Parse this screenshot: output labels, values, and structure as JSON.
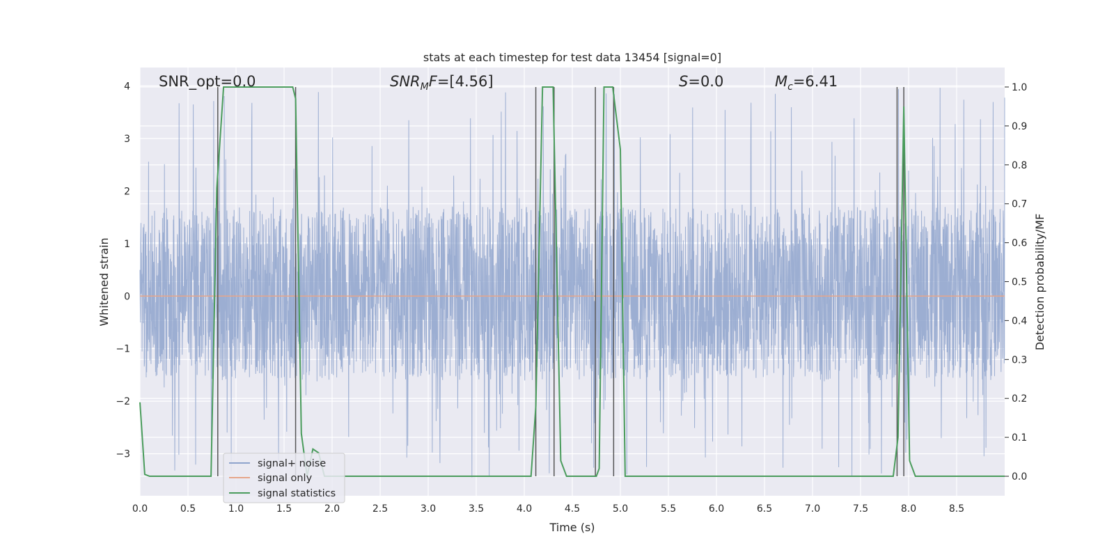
{
  "chart_data": {
    "type": "line",
    "title": "stats at each timestep for test data 13454 [signal=0]",
    "xlabel": "Time (s)",
    "ylabel": "Whitened strain",
    "y2label": "Detection probability/MF",
    "xlim": [
      0,
      9
    ],
    "ylim": [
      -3.8,
      4.35
    ],
    "y2lim": [
      -0.05,
      1.05
    ],
    "x_ticks": [
      "0.0",
      "0.5",
      "1.0",
      "1.5",
      "2.0",
      "2.5",
      "3.0",
      "3.5",
      "4.0",
      "4.5",
      "5.0",
      "5.5",
      "6.0",
      "6.5",
      "7.0",
      "7.5",
      "8.0",
      "8.5"
    ],
    "y_ticks": [
      "4",
      "3",
      "2",
      "1",
      "0",
      "−1",
      "−2",
      "−3"
    ],
    "y2_ticks": [
      "1.0",
      "0.9",
      "0.8",
      "0.7",
      "0.6",
      "0.5",
      "0.4",
      "0.3",
      "0.2",
      "0.1",
      "0.0"
    ],
    "grid": true,
    "legend_position": "lower-left",
    "annotations": {
      "snr_opt": "SNR_opt=0.0",
      "snr_mf_italic": "SNR",
      "snr_mf_sub": "M",
      "snr_mf_tail": "F",
      "snr_mf_value": "=[4.56]",
      "s_label": "S",
      "s_value": "=0.0",
      "mc_label": "M",
      "mc_sub": "c",
      "mc_value": "=6.41"
    },
    "series": [
      {
        "name": "signal+ noise",
        "color": "#8ea3cc",
        "noise_band": {
          "typical_low": -1.6,
          "typical_high": 1.7,
          "extreme_low": -3.45,
          "extreme_high": 4.0
        }
      },
      {
        "name": "signal only",
        "color": "#e6a68a",
        "x": [
          0,
          9
        ],
        "y": [
          0,
          0
        ]
      },
      {
        "name": "signal statistics",
        "color": "#4a9c5c",
        "axis": "right",
        "x": [
          0,
          0.05,
          0.1,
          0.74,
          0.8,
          0.87,
          1.59,
          1.62,
          1.68,
          1.74,
          1.8,
          1.86,
          1.92,
          2.02,
          4.07,
          4.12,
          4.19,
          4.3,
          4.38,
          4.44,
          4.75,
          4.78,
          4.83,
          4.92,
          5.0,
          5.05,
          7.84,
          7.89,
          7.95,
          8.01,
          8.07,
          9.0
        ],
        "y": [
          0.19,
          0.005,
          0.0,
          0.0,
          0.74,
          1.0,
          1.0,
          0.97,
          0.11,
          0.0,
          0.07,
          0.06,
          0.0,
          0.0,
          0.0,
          0.18,
          1.0,
          1.0,
          0.04,
          0.0,
          0.0,
          0.02,
          1.0,
          1.0,
          0.84,
          0.0,
          0.0,
          0.1,
          0.95,
          0.04,
          0.0,
          0.0
        ]
      }
    ],
    "vertical_markers": [
      0.81,
      1.62,
      4.12,
      4.31,
      4.74,
      4.93,
      7.88,
      7.95
    ],
    "colors": {
      "axes_bg": "#eaeaf2",
      "grid": "#ffffff",
      "marker_line": "#555555",
      "legend_bg": "#eaeaf2",
      "legend_border": "#cccccc"
    }
  }
}
